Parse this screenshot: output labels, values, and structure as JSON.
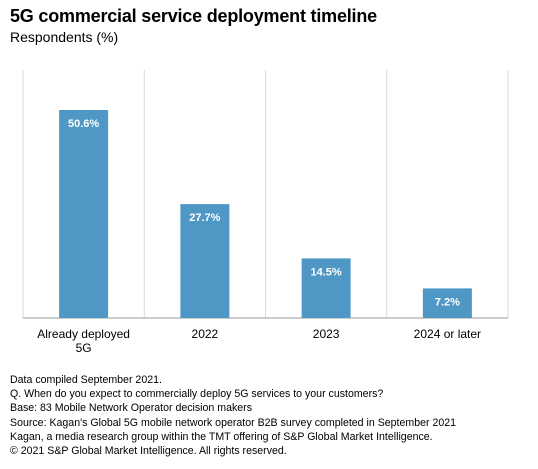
{
  "chart_data": {
    "type": "bar",
    "title": "5G commercial service deployment timeline",
    "subtitle": "Respondents (%)",
    "categories": [
      [
        "Already deployed",
        "5G"
      ],
      [
        "2022"
      ],
      [
        "2023"
      ],
      [
        "2024 or later"
      ]
    ],
    "values": [
      50.6,
      27.7,
      14.5,
      7.2
    ],
    "data_labels": [
      "50.6%",
      "27.7%",
      "14.5%",
      "7.2%"
    ],
    "ylim": [
      0,
      60
    ],
    "grid": "vertical separators",
    "bar_color": "#4f97c4",
    "gridline_color": "#d9d9d9"
  },
  "footnotes": [
    "Data compiled September 2021.",
    "Q. When do you expect to commercially deploy 5G services to your customers?",
    "Base: 83 Mobile Network Operator decision makers",
    "Source: Kagan's Global 5G mobile network operator B2B survey completed in September 2021",
    "Kagan, a media research group within the TMT offering of S&P Global Market Intelligence.",
    "© 2021 S&P Global Market Intelligence. All rights reserved."
  ]
}
